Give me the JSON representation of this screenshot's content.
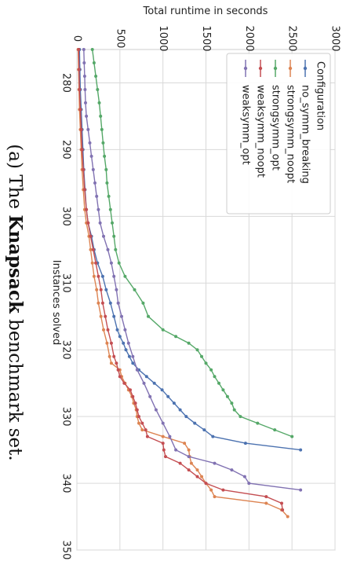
{
  "caption": {
    "prefix": "(a) The ",
    "bold": "Knapsack",
    "suffix": " benchmark set."
  },
  "chart_data": {
    "type": "line",
    "xlabel": "Instances solved",
    "ylabel": "Total runtime in seconds",
    "xlim": [
      275,
      350
    ],
    "ylim": [
      0,
      3000
    ],
    "xticks": [
      280,
      290,
      300,
      310,
      320,
      330,
      340,
      350
    ],
    "yticks": [
      0,
      500,
      1000,
      1500,
      2000,
      2500,
      3000
    ],
    "grid": true,
    "legend": {
      "title": "Configuration",
      "position": "upper right"
    },
    "series": [
      {
        "name": "no_symm_breaking",
        "color": "#4c72b0",
        "points": [
          [
            275,
            30
          ],
          [
            278,
            35
          ],
          [
            281,
            40
          ],
          [
            284,
            50
          ],
          [
            287,
            60
          ],
          [
            290,
            70
          ],
          [
            293,
            80
          ],
          [
            296,
            95
          ],
          [
            299,
            110
          ],
          [
            301,
            130
          ],
          [
            303,
            170
          ],
          [
            305,
            200
          ],
          [
            307,
            240
          ],
          [
            309,
            300
          ],
          [
            311,
            340
          ],
          [
            313,
            390
          ],
          [
            315,
            430
          ],
          [
            317,
            470
          ],
          [
            318,
            500
          ],
          [
            319,
            540
          ],
          [
            320,
            570
          ],
          [
            321,
            610
          ],
          [
            322,
            650
          ],
          [
            323,
            720
          ],
          [
            324,
            810
          ],
          [
            325,
            900
          ],
          [
            326,
            990
          ],
          [
            327,
            1060
          ],
          [
            328,
            1130
          ],
          [
            329,
            1200
          ],
          [
            330,
            1270
          ],
          [
            331,
            1370
          ],
          [
            332,
            1480
          ],
          [
            333,
            1580
          ],
          [
            334,
            1960
          ],
          [
            335,
            2600
          ]
        ]
      },
      {
        "name": "strongsymm_noopt",
        "color": "#dd8452",
        "points": [
          [
            275,
            15
          ],
          [
            278,
            20
          ],
          [
            281,
            25
          ],
          [
            284,
            30
          ],
          [
            287,
            40
          ],
          [
            290,
            50
          ],
          [
            293,
            60
          ],
          [
            296,
            75
          ],
          [
            299,
            90
          ],
          [
            301,
            110
          ],
          [
            303,
            140
          ],
          [
            305,
            160
          ],
          [
            307,
            180
          ],
          [
            309,
            200
          ],
          [
            311,
            230
          ],
          [
            313,
            250
          ],
          [
            315,
            280
          ],
          [
            317,
            310
          ],
          [
            319,
            350
          ],
          [
            321,
            380
          ],
          [
            322,
            400
          ],
          [
            323,
            500
          ],
          [
            324,
            520
          ],
          [
            325,
            560
          ],
          [
            326,
            600
          ],
          [
            327,
            640
          ],
          [
            328,
            660
          ],
          [
            329,
            690
          ],
          [
            330,
            700
          ],
          [
            331,
            720
          ],
          [
            332,
            760
          ],
          [
            333,
            1000
          ],
          [
            334,
            1250
          ],
          [
            335,
            1300
          ],
          [
            336,
            1310
          ],
          [
            337,
            1330
          ],
          [
            338,
            1400
          ],
          [
            339,
            1450
          ],
          [
            340,
            1500
          ],
          [
            341,
            1560
          ],
          [
            342,
            1600
          ],
          [
            343,
            2200
          ],
          [
            344,
            2380
          ],
          [
            345,
            2450
          ]
        ]
      },
      {
        "name": "strongsymm_opt",
        "color": "#55a868",
        "points": [
          [
            275,
            180
          ],
          [
            277,
            200
          ],
          [
            279,
            220
          ],
          [
            281,
            240
          ],
          [
            283,
            260
          ],
          [
            285,
            275
          ],
          [
            287,
            290
          ],
          [
            289,
            305
          ],
          [
            291,
            320
          ],
          [
            293,
            340
          ],
          [
            295,
            350
          ],
          [
            297,
            370
          ],
          [
            299,
            390
          ],
          [
            301,
            410
          ],
          [
            303,
            430
          ],
          [
            305,
            450
          ],
          [
            307,
            490
          ],
          [
            309,
            560
          ],
          [
            311,
            670
          ],
          [
            313,
            770
          ],
          [
            315,
            830
          ],
          [
            317,
            1000
          ],
          [
            318,
            1150
          ],
          [
            319,
            1300
          ],
          [
            320,
            1400
          ],
          [
            321,
            1450
          ],
          [
            322,
            1500
          ],
          [
            323,
            1560
          ],
          [
            324,
            1600
          ],
          [
            325,
            1650
          ],
          [
            326,
            1700
          ],
          [
            327,
            1750
          ],
          [
            328,
            1800
          ],
          [
            329,
            1830
          ],
          [
            330,
            1900
          ],
          [
            331,
            2100
          ],
          [
            332,
            2300
          ],
          [
            333,
            2500
          ]
        ]
      },
      {
        "name": "weaksymm_noopt",
        "color": "#c44e52",
        "points": [
          [
            275,
            20
          ],
          [
            278,
            25
          ],
          [
            281,
            30
          ],
          [
            284,
            40
          ],
          [
            287,
            50
          ],
          [
            290,
            60
          ],
          [
            293,
            75
          ],
          [
            296,
            90
          ],
          [
            299,
            110
          ],
          [
            301,
            130
          ],
          [
            303,
            160
          ],
          [
            305,
            190
          ],
          [
            307,
            220
          ],
          [
            309,
            250
          ],
          [
            311,
            280
          ],
          [
            313,
            300
          ],
          [
            315,
            330
          ],
          [
            317,
            360
          ],
          [
            319,
            400
          ],
          [
            321,
            430
          ],
          [
            322,
            460
          ],
          [
            323,
            480
          ],
          [
            324,
            500
          ],
          [
            325,
            550
          ],
          [
            326,
            620
          ],
          [
            327,
            650
          ],
          [
            328,
            680
          ],
          [
            329,
            700
          ],
          [
            330,
            720
          ],
          [
            331,
            760
          ],
          [
            332,
            800
          ],
          [
            333,
            820
          ],
          [
            334,
            1000
          ],
          [
            335,
            1010
          ],
          [
            336,
            1030
          ],
          [
            337,
            1200
          ],
          [
            338,
            1300
          ],
          [
            339,
            1400
          ],
          [
            340,
            1500
          ],
          [
            341,
            1700
          ],
          [
            342,
            2200
          ],
          [
            343,
            2380
          ],
          [
            344,
            2390
          ]
        ]
      },
      {
        "name": "weaksymm_opt",
        "color": "#8172b2",
        "points": [
          [
            275,
            80
          ],
          [
            277,
            85
          ],
          [
            279,
            90
          ],
          [
            281,
            95
          ],
          [
            283,
            100
          ],
          [
            285,
            110
          ],
          [
            287,
            130
          ],
          [
            289,
            150
          ],
          [
            291,
            170
          ],
          [
            293,
            190
          ],
          [
            295,
            210
          ],
          [
            297,
            230
          ],
          [
            299,
            250
          ],
          [
            301,
            270
          ],
          [
            303,
            310
          ],
          [
            305,
            360
          ],
          [
            307,
            400
          ],
          [
            309,
            430
          ],
          [
            311,
            460
          ],
          [
            313,
            480
          ],
          [
            315,
            520
          ],
          [
            317,
            560
          ],
          [
            319,
            600
          ],
          [
            321,
            650
          ],
          [
            323,
            700
          ],
          [
            325,
            780
          ],
          [
            327,
            850
          ],
          [
            329,
            920
          ],
          [
            331,
            1000
          ],
          [
            333,
            1080
          ],
          [
            335,
            1150
          ],
          [
            336,
            1300
          ],
          [
            337,
            1600
          ],
          [
            338,
            1800
          ],
          [
            339,
            1950
          ],
          [
            340,
            2000
          ],
          [
            341,
            2600
          ]
        ]
      }
    ]
  }
}
